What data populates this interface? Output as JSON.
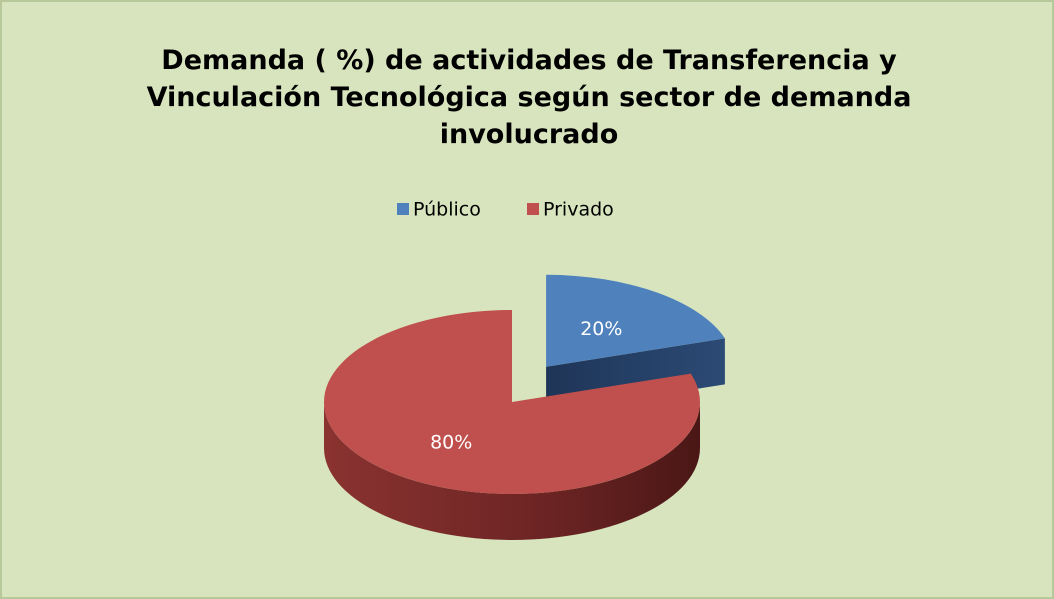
{
  "chart_data": {
    "type": "pie",
    "title": "Demanda ( %) de actividades de Transferencia y Vinculación Tecnológica según sector de demanda involucrado",
    "categories": [
      "Público",
      "Privado"
    ],
    "values": [
      20,
      80
    ],
    "value_labels": [
      "20%",
      "80%"
    ],
    "colors": [
      "#4f81bd",
      "#c0504d"
    ],
    "legend": "top"
  }
}
